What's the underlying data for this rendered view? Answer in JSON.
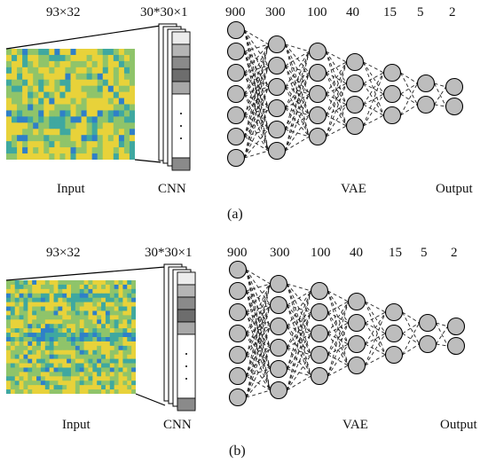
{
  "panels": [
    {
      "id": "a",
      "input_size": "93×32",
      "cnn_size": "30*30×1",
      "layer_sizes": [
        "900",
        "300",
        "100",
        "40",
        "15",
        "5",
        "2"
      ],
      "input_label": "Input",
      "cnn_label": "CNN",
      "vae_label": "VAE",
      "output_label": "Output",
      "caption": "(a)"
    },
    {
      "id": "b",
      "input_size": "93×32",
      "cnn_size": "30*30×1",
      "layer_sizes": [
        "900",
        "300",
        "100",
        "40",
        "15",
        "5",
        "2"
      ],
      "input_label": "Input",
      "cnn_label": "CNN",
      "vae_label": "VAE",
      "output_label": "Output",
      "caption": "(b)"
    }
  ],
  "colors": {
    "node_fill": "#bdbdbd",
    "heat_yellow": "#e8d23a",
    "heat_green": "#8fc46a",
    "heat_teal": "#3fa8a0",
    "heat_blue": "#2f80c8"
  }
}
